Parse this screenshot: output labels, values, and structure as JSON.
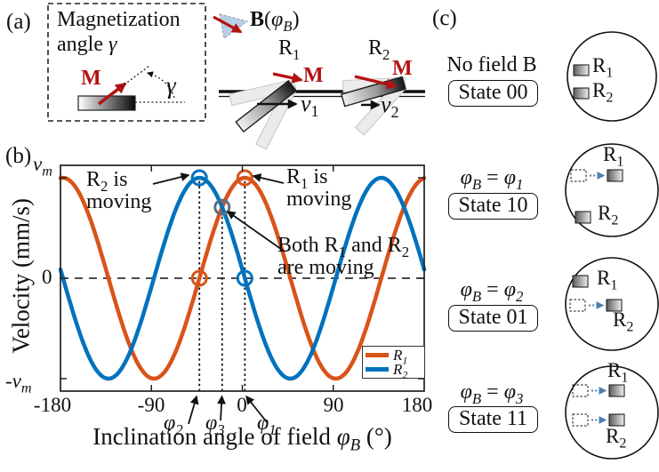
{
  "panel_a": {
    "tag": "(a)",
    "title_line1": "Magnetization",
    "title_line2": [
      {
        "t": "angle "
      },
      {
        "t": "γ",
        "i": true
      }
    ],
    "m_label": [
      {
        "t": "M",
        "b": true
      }
    ],
    "gamma_label": [
      {
        "t": "γ",
        "i": true
      }
    ]
  },
  "top_diagram": {
    "field_label": [
      {
        "t": "B",
        "b": true
      },
      {
        "t": "("
      },
      {
        "t": "φ",
        "i": true
      },
      {
        "t": "B",
        "i": true,
        "s": true
      },
      {
        "t": ")"
      }
    ],
    "r1_label": [
      {
        "t": "R"
      },
      {
        "t": "1",
        "s": true
      }
    ],
    "r2_label": [
      {
        "t": "R"
      },
      {
        "t": "2",
        "s": true
      }
    ],
    "m1_label": [
      {
        "t": "M",
        "b": true
      }
    ],
    "m2_label": [
      {
        "t": "M",
        "b": true
      }
    ],
    "v1_label": [
      {
        "t": "v",
        "i": true
      },
      {
        "t": "1",
        "s": true
      }
    ],
    "v2_label": [
      {
        "t": "v",
        "i": true
      },
      {
        "t": "2",
        "s": true
      }
    ]
  },
  "panel_b": {
    "tag": "(b)",
    "ylabel": "Velocity (mm/s)",
    "xlabel": [
      {
        "t": "Inclination angle of field "
      },
      {
        "t": "φ",
        "i": true
      },
      {
        "t": "B",
        "i": true,
        "s": true
      },
      {
        "t": " (°)"
      }
    ],
    "ytick_vm": [
      {
        "t": "v",
        "i": true
      },
      {
        "t": "m",
        "i": true,
        "s": true
      }
    ],
    "ytick_zero": "0",
    "ytick_neg_vm": [
      {
        "t": "-"
      },
      {
        "t": "v",
        "i": true
      },
      {
        "t": "m",
        "i": true,
        "s": true
      }
    ],
    "xticks": [
      "-180",
      "-90",
      "0",
      "90",
      "180"
    ],
    "phi_labels": {
      "phi2": [
        {
          "t": "φ",
          "i": true
        },
        {
          "t": "2",
          "i": true,
          "s": true
        }
      ],
      "phi3": [
        {
          "t": "φ",
          "i": true
        },
        {
          "t": "3",
          "i": true,
          "s": true
        }
      ],
      "phi1": [
        {
          "t": "φ",
          "i": true
        },
        {
          "t": "1",
          "i": true,
          "s": true
        }
      ]
    },
    "annotations": {
      "r2_moving_l1": [
        {
          "t": "R"
        },
        {
          "t": "2",
          "s": true
        },
        {
          "t": " is"
        }
      ],
      "r2_moving_l2": "moving",
      "r1_moving_l1": [
        {
          "t": "R"
        },
        {
          "t": "1",
          "s": true
        },
        {
          "t": " is"
        }
      ],
      "r1_moving_l2": "moving",
      "both_l1": [
        {
          "t": "Both R"
        },
        {
          "t": "1",
          "s": true
        },
        {
          "t": " and R"
        },
        {
          "t": "2",
          "s": true
        }
      ],
      "both_l2": "are moving"
    },
    "legend": {
      "entries": [
        {
          "label": [
            {
              "t": "R",
              "i": true
            },
            {
              "t": "1",
              "i": true,
              "s": true
            }
          ]
        },
        {
          "label": [
            {
              "t": "R",
              "i": true
            },
            {
              "t": "2",
              "i": true,
              "s": true
            }
          ]
        }
      ]
    }
  },
  "chart_data": {
    "type": "line",
    "xlabel": "Inclination angle of field phi_B (deg)",
    "ylabel": "Velocity (mm/s)",
    "x_range_deg": [
      -180,
      180
    ],
    "x_ticks_deg": [
      -180,
      -90,
      0,
      90,
      180
    ],
    "y_ticks": [
      "vm",
      "0",
      "-vm"
    ],
    "y_range": [
      "-vm",
      "vm"
    ],
    "model": "v(phiB) = vm * cos(2 * (phiB - peak_phi_deg)), period 180 deg",
    "period_deg": 180,
    "series": [
      {
        "name": "R1",
        "color": "#d95319",
        "peak_phi_deg": 2.5
      },
      {
        "name": "R2",
        "color": "#0072bd",
        "peak_phi_deg": -42.5
      }
    ],
    "key_angles_deg": {
      "phi_1": 2.5,
      "phi_2": -42.5,
      "phi_3": -20
    },
    "guide_lines": [
      {
        "phi_deg": -42.5,
        "v_top": 1
      },
      {
        "phi_deg": -20,
        "v_top": 0.707
      },
      {
        "phi_deg": 2.5,
        "v_top": 1
      }
    ],
    "markers": [
      {
        "phi_deg": -42.5,
        "v": 1,
        "color": "#0072bd",
        "note": "R2 maximum - R2 is moving"
      },
      {
        "phi_deg": 2.5,
        "v": 1,
        "color": "#d95319",
        "note": "R1 maximum - R1 is moving"
      },
      {
        "phi_deg": -42.5,
        "v": 0,
        "color": "#d95319",
        "note": "R1 zero crossing"
      },
      {
        "phi_deg": 2.5,
        "v": 0,
        "color": "#0072bd",
        "note": "R2 zero crossing"
      },
      {
        "phi_deg": -20,
        "v": 0.707,
        "color": "#5c6f80",
        "note": "curves cross - both R1 and R2 moving"
      }
    ],
    "zero_line": "dashed",
    "legend_position": "lower right"
  },
  "panel_c": {
    "tag": "(c)",
    "rows": [
      {
        "condition": [
          {
            "t": "No field B"
          }
        ],
        "state": "State 00",
        "r1_label": [
          {
            "t": "R"
          },
          {
            "t": "1",
            "s": true
          }
        ],
        "r2_label": [
          {
            "t": "R"
          },
          {
            "t": "2",
            "s": true
          }
        ],
        "r1_moving": false,
        "r2_moving": false
      },
      {
        "condition": [
          {
            "t": "φ",
            "i": true
          },
          {
            "t": "B",
            "i": true,
            "s": true
          },
          {
            "t": " = "
          },
          {
            "t": "φ",
            "i": true
          },
          {
            "t": "1",
            "i": true,
            "s": true
          }
        ],
        "state": "State 10",
        "r1_label": [
          {
            "t": "R"
          },
          {
            "t": "1",
            "s": true
          }
        ],
        "r2_label": [
          {
            "t": "R"
          },
          {
            "t": "2",
            "s": true
          }
        ],
        "r1_moving": true,
        "r2_moving": false
      },
      {
        "condition": [
          {
            "t": "φ",
            "i": true
          },
          {
            "t": "B",
            "i": true,
            "s": true
          },
          {
            "t": " = "
          },
          {
            "t": "φ",
            "i": true
          },
          {
            "t": "2",
            "i": true,
            "s": true
          }
        ],
        "state": "State 01",
        "r1_label": [
          {
            "t": "R"
          },
          {
            "t": "1",
            "s": true
          }
        ],
        "r2_label": [
          {
            "t": "R"
          },
          {
            "t": "2",
            "s": true
          }
        ],
        "r1_moving": false,
        "r2_moving": true
      },
      {
        "condition": [
          {
            "t": "φ",
            "i": true
          },
          {
            "t": "B",
            "i": true,
            "s": true
          },
          {
            "t": " = "
          },
          {
            "t": "φ",
            "i": true
          },
          {
            "t": "3",
            "i": true,
            "s": true
          }
        ],
        "state": "State 11",
        "r1_label": [
          {
            "t": "R"
          },
          {
            "t": "1",
            "s": true
          }
        ],
        "r2_label": [
          {
            "t": "R"
          },
          {
            "t": "2",
            "s": true
          }
        ],
        "r1_moving": true,
        "r2_moving": true
      }
    ]
  }
}
